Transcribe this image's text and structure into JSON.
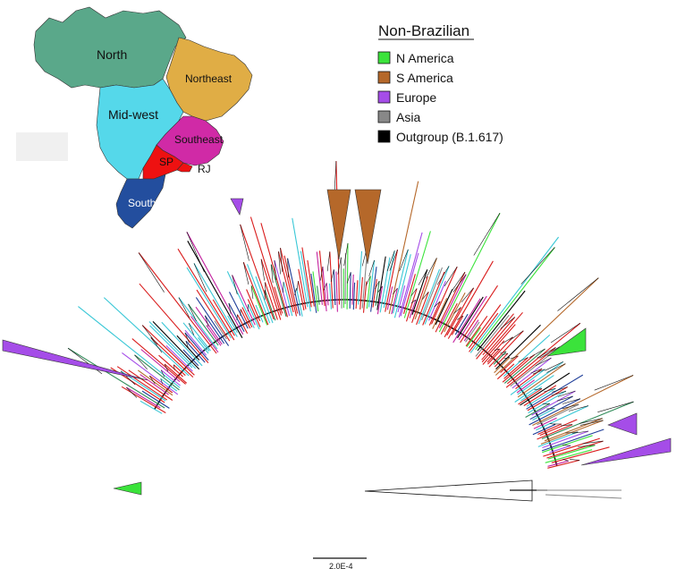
{
  "map": {
    "regions": [
      {
        "key": "north",
        "label": "North",
        "color": "#5aa88a"
      },
      {
        "key": "northeast",
        "label": "Northeast",
        "color": "#e0ad45"
      },
      {
        "key": "midwest",
        "label": "Mid-west",
        "color": "#55d8ea"
      },
      {
        "key": "southeast",
        "label": "Southeast",
        "color": "#d02aa6"
      },
      {
        "key": "sp",
        "label": "SP",
        "color": "#ee1111"
      },
      {
        "key": "rj",
        "label": "RJ",
        "color": "#ee1111"
      },
      {
        "key": "south",
        "label": "South",
        "color": "#234e9e"
      }
    ]
  },
  "legend": {
    "title": "Non-Brazilian",
    "items": [
      {
        "label": "N America",
        "color": "#3be33b"
      },
      {
        "label": "S America",
        "color": "#b5682a"
      },
      {
        "label": "Europe",
        "color": "#a54de8"
      },
      {
        "label": "Asia",
        "color": "#888888"
      },
      {
        "label": "Outgroup (B.1.617)",
        "color": "#000000"
      }
    ]
  },
  "tree": {
    "branch_colors": [
      "#d91c1c",
      "#39c7d6",
      "#1f3e99",
      "#c421a0",
      "#3be33b",
      "#b5682a",
      "#a54de8",
      "#888888",
      "#2e8b57",
      "#000000"
    ]
  },
  "scale_bar": {
    "label": "2.0E-4"
  }
}
